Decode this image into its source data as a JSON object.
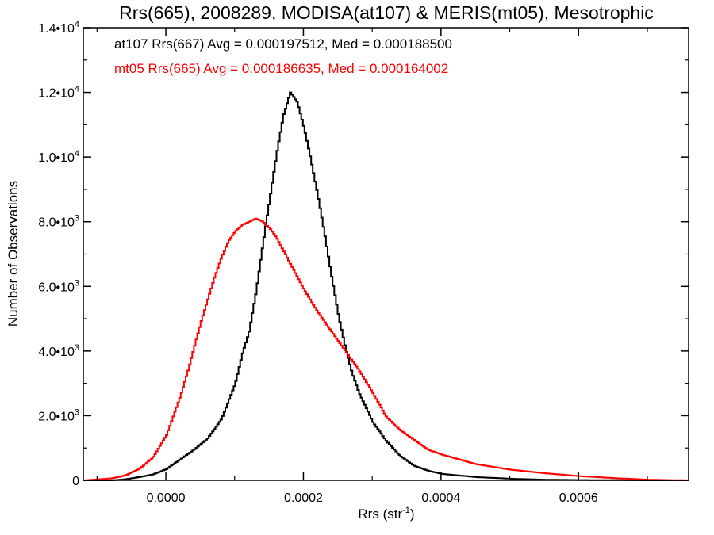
{
  "chart_data": {
    "type": "line",
    "title": "Rrs(665), 2008289, MODISA(at107) & MERIS(mt05), Mesotrophic",
    "xlabel_base": "Rrs (str",
    "xlabel_sup": "-1",
    "xlabel_tail": ")",
    "ylabel": "Number of Observations",
    "xlim": [
      -0.00012,
      0.00076
    ],
    "ylim": [
      0,
      14000
    ],
    "x_ticks": [
      {
        "value": 0.0,
        "label": "0.0000"
      },
      {
        "value": 0.0002,
        "label": "0.0002"
      },
      {
        "value": 0.0004,
        "label": "0.0004"
      },
      {
        "value": 0.0006,
        "label": "0.0006"
      }
    ],
    "y_ticks": [
      {
        "value": 0,
        "base": "0",
        "exp": ""
      },
      {
        "value": 2000,
        "base": "2.0•10",
        "exp": "3"
      },
      {
        "value": 4000,
        "base": "4.0•10",
        "exp": "3"
      },
      {
        "value": 6000,
        "base": "6.0•10",
        "exp": "3"
      },
      {
        "value": 8000,
        "base": "8.0•10",
        "exp": "3"
      },
      {
        "value": 10000,
        "base": "1.0•10",
        "exp": "4"
      },
      {
        "value": 12000,
        "base": "1.2•10",
        "exp": "4"
      },
      {
        "value": 14000,
        "base": "1.4•10",
        "exp": "4"
      }
    ],
    "annotations": [
      {
        "text": "at107 Rrs(667) Avg = 0.000197512, Med = 0.000188500",
        "color": "#000000"
      },
      {
        "text": "mt05 Rrs(665) Avg = 0.000186635, Med = 0.000164002",
        "color": "#ff0000"
      }
    ],
    "series": [
      {
        "color": "#000000",
        "step": true,
        "x": [
          -0.00012,
          -0.0001,
          -8e-05,
          -6e-05,
          -4e-05,
          -2e-05,
          0.0,
          2e-05,
          4e-05,
          6e-05,
          8e-05,
          0.0001,
          0.00011,
          0.00012,
          0.00013,
          0.00014,
          0.00015,
          0.00016,
          0.00017,
          0.00018,
          0.00019,
          0.0002,
          0.00021,
          0.00022,
          0.00023,
          0.00024,
          0.00025,
          0.00026,
          0.00027,
          0.00028,
          0.0003,
          0.00032,
          0.00034,
          0.00036,
          0.00038,
          0.0004,
          0.00045,
          0.0005,
          0.00055,
          0.0006,
          0.00065,
          0.0007,
          0.00076
        ],
        "y": [
          0,
          0,
          0,
          30,
          100,
          180,
          350,
          650,
          950,
          1300,
          1900,
          3000,
          3900,
          4600,
          5800,
          7300,
          8700,
          10100,
          11300,
          12000,
          11700,
          10900,
          9900,
          8800,
          7600,
          6300,
          5100,
          4100,
          3300,
          2700,
          1800,
          1200,
          750,
          450,
          300,
          200,
          100,
          50,
          20,
          10,
          5,
          0,
          0
        ]
      },
      {
        "color": "#ff0000",
        "step": true,
        "x": [
          -0.00012,
          -0.0001,
          -8e-05,
          -6e-05,
          -4e-05,
          -2e-05,
          0.0,
          1e-05,
          2e-05,
          3e-05,
          4e-05,
          5e-05,
          6e-05,
          7e-05,
          8e-05,
          9e-05,
          0.0001,
          0.00011,
          0.00012,
          0.00013,
          0.00014,
          0.00015,
          0.00016,
          0.00017,
          0.00018,
          0.0002,
          0.00022,
          0.00024,
          0.00026,
          0.00028,
          0.0003,
          0.00032,
          0.00034,
          0.00036,
          0.00038,
          0.0004,
          0.00045,
          0.0005,
          0.00055,
          0.0006,
          0.00065,
          0.0007,
          0.00076
        ],
        "y": [
          0,
          30,
          60,
          150,
          350,
          700,
          1400,
          2000,
          2600,
          3300,
          4100,
          4900,
          5600,
          6300,
          6900,
          7400,
          7700,
          7900,
          8000,
          8100,
          8000,
          7800,
          7500,
          7100,
          6700,
          5900,
          5200,
          4600,
          4000,
          3400,
          2700,
          1950,
          1550,
          1250,
          950,
          800,
          500,
          330,
          220,
          130,
          70,
          20,
          0
        ]
      }
    ]
  }
}
